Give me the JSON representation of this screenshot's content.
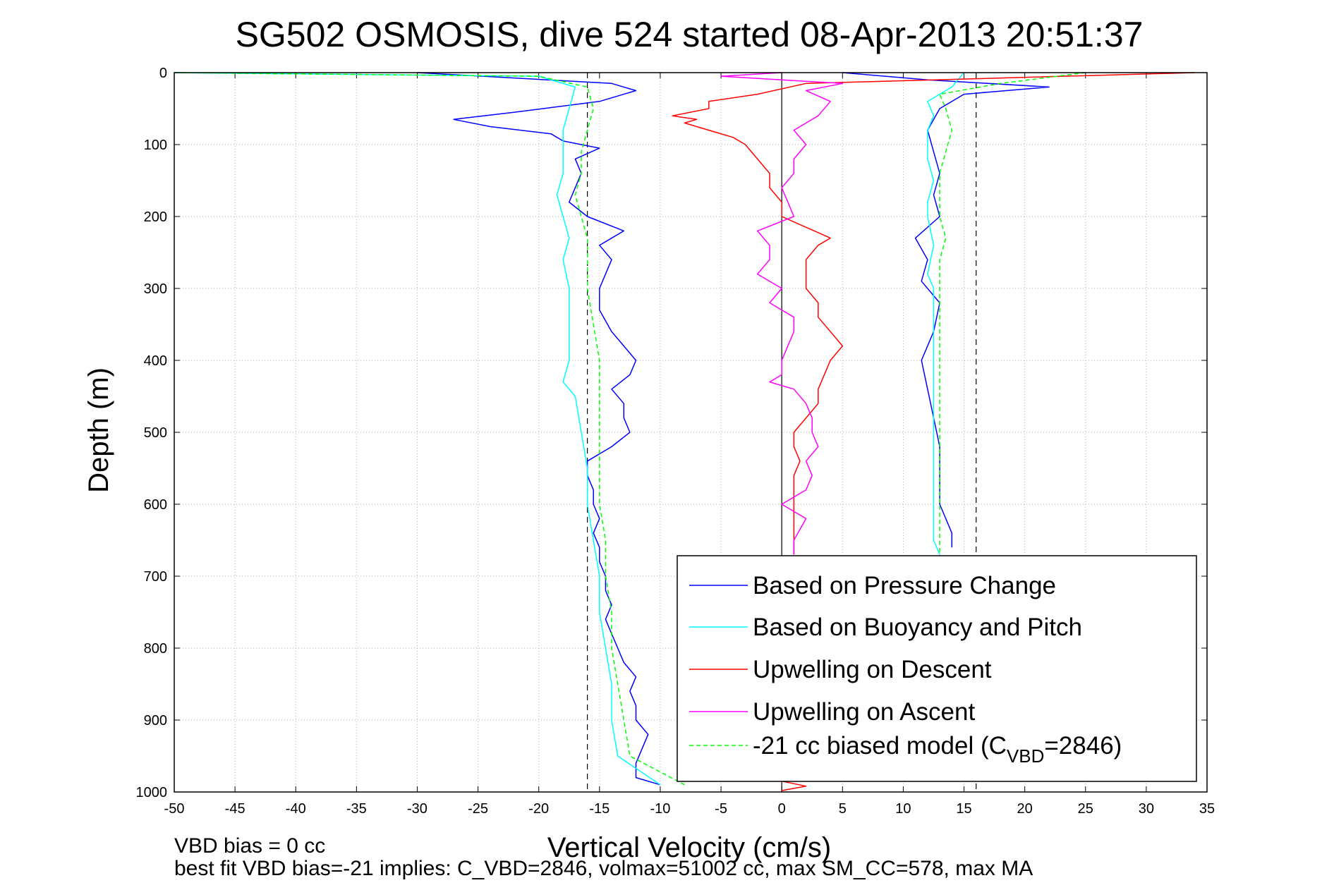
{
  "chart_data": {
    "type": "line",
    "title": "SG502 OSMOSIS, dive 524 started 08-Apr-2013 20:51:37",
    "xlabel": "Vertical Velocity (cm/s)",
    "ylabel": "Depth (m)",
    "xlim": [
      -50,
      35
    ],
    "ylim": [
      0,
      1000
    ],
    "y_reversed": true,
    "grid": true,
    "x_ticks": [
      "-50",
      "-45",
      "-40",
      "-35",
      "-30",
      "-25",
      "-20",
      "-15",
      "-10",
      "-5",
      "0",
      "5",
      "10",
      "15",
      "20",
      "25",
      "30",
      "35"
    ],
    "y_ticks": [
      "0",
      "100",
      "200",
      "300",
      "400",
      "500",
      "600",
      "700",
      "800",
      "900",
      "1000"
    ],
    "reference_lines": {
      "solid_x": 0,
      "dashed_x": [
        -16,
        16
      ],
      "color": "#000000"
    },
    "legend_position": "bottom-right",
    "legend": [
      {
        "label": "Based on Pressure Change",
        "color": "#0000ff",
        "dash": false
      },
      {
        "label": "Based on Buoyancy and Pitch",
        "color": "#00ffff",
        "dash": false
      },
      {
        "label": "Upwelling on Descent",
        "color": "#ff0000",
        "dash": false
      },
      {
        "label": "Upwelling on Ascent",
        "color": "#ff00ff",
        "dash": false
      },
      {
        "label_prefix": "-21 cc biased model (C",
        "label_sub": "VBD",
        "label_suffix": "=2846)",
        "color": "#00ff00",
        "dash": true
      }
    ],
    "series": [
      {
        "name": "Based on Pressure Change",
        "color": "#0000ff",
        "segments": [
          {
            "depth": [
              0,
              15,
              25,
              40,
              55,
              65,
              75,
              85,
              95,
              105,
              120,
              140,
              160,
              180,
              200,
              220,
              240,
              260,
              280,
              300,
              330,
              360,
              380,
              400,
              420,
              440,
              460,
              480,
              500,
              520,
              540,
              560,
              580,
              600,
              620,
              640,
              660,
              680,
              700,
              720,
              740,
              760,
              780,
              800,
              820,
              840,
              860,
              880,
              900,
              920,
              940,
              960,
              980,
              990
            ],
            "value": [
              -30,
              -14,
              -12,
              -15,
              -22,
              -27,
              -24,
              -19,
              -18,
              -15,
              -17,
              -16.5,
              -17,
              -17.5,
              -16,
              -13,
              -15,
              -14,
              -14.5,
              -15,
              -15,
              -14,
              -13,
              -12,
              -12.5,
              -14,
              -13,
              -13,
              -12.5,
              -14,
              -16,
              -16,
              -15.5,
              -15.5,
              -15,
              -15.5,
              -15,
              -15,
              -14.5,
              -14.5,
              -14,
              -14.5,
              -14,
              -13.5,
              -13,
              -12,
              -12.5,
              -12,
              -12,
              -11,
              -11.5,
              -12,
              -12,
              -10
            ]
          },
          {
            "depth": [
              0,
              10,
              20,
              30,
              50,
              80,
              110,
              140,
              170,
              200,
              230,
              260,
              290,
              320,
              360,
              400,
              440,
              480,
              520,
              560,
              600,
              640,
              660
            ],
            "value": [
              5,
              12,
              22,
              15,
              13,
              12,
              12.5,
              13,
              12.5,
              13,
              11,
              12,
              11.5,
              13,
              12.5,
              11.5,
              12,
              12.5,
              13,
              13,
              13,
              14,
              14
            ]
          }
        ]
      },
      {
        "name": "Based on Buoyancy and Pitch",
        "color": "#00ffff",
        "segments": [
          {
            "depth": [
              0,
              5,
              20,
              50,
              80,
              110,
              140,
              170,
              200,
              230,
              260,
              300,
              350,
              400,
              430,
              450,
              500,
              550,
              600,
              650,
              700,
              750,
              800,
              850,
              900,
              950,
              990
            ],
            "value": [
              -50,
              -20,
              -17,
              -17.5,
              -18,
              -18,
              -18,
              -18.5,
              -18,
              -17.5,
              -18,
              -17.5,
              -17.5,
              -17.5,
              -18,
              -17,
              -16.5,
              -16,
              -16,
              -15.5,
              -15,
              -15,
              -14.5,
              -14,
              -14,
              -13.5,
              -10
            ]
          },
          {
            "depth": [
              0,
              20,
              40,
              60,
              80,
              100,
              120,
              150,
              180,
              200,
              240,
              280,
              300,
              350,
              400,
              450,
              500,
              550,
              600,
              650,
              670
            ],
            "value": [
              15,
              14,
              12,
              12.5,
              12,
              12,
              12,
              12.5,
              12,
              12,
              12.5,
              12,
              12.5,
              12.5,
              12.5,
              12.5,
              12.5,
              12.5,
              12.5,
              12.5,
              13
            ]
          }
        ]
      },
      {
        "name": "Upwelling on Descent",
        "color": "#ff0000",
        "segments": [
          {
            "depth": [
              0,
              15,
              30,
              40,
              50,
              60,
              65,
              70,
              80,
              90,
              100,
              120,
              140,
              160,
              180,
              200,
              215,
              230,
              240,
              260,
              280,
              300,
              320,
              340,
              360,
              380,
              400,
              420,
              440,
              460,
              480,
              500,
              520,
              540,
              560,
              580,
              600,
              620,
              640,
              660,
              670
            ],
            "value": [
              34,
              2,
              -2,
              -6,
              -6,
              -9,
              -7,
              -8,
              -6,
              -4,
              -3,
              -2,
              -1,
              -1,
              0,
              0,
              2,
              4,
              3,
              2,
              2,
              2,
              3,
              3,
              4,
              5,
              4,
              3.5,
              3,
              3,
              2,
              1,
              1,
              1.5,
              1,
              1,
              1,
              1,
              1,
              1,
              1
            ]
          },
          {
            "depth": [
              985,
              992,
              998
            ],
            "value": [
              0,
              2,
              0
            ]
          }
        ]
      },
      {
        "name": "Upwelling on Ascent",
        "color": "#ff00ff",
        "segments": [
          {
            "depth": [
              670,
              650,
              620,
              600,
              580,
              560,
              540,
              520,
              500,
              480,
              460,
              440,
              430,
              420,
              400,
              380,
              360,
              340,
              320,
              300,
              280,
              260,
              240,
              220,
              200,
              180,
              160,
              140,
              120,
              100,
              80,
              60,
              40,
              25,
              15,
              5,
              0
            ],
            "value": [
              1,
              1,
              2,
              0,
              2,
              2.5,
              2,
              3,
              2.5,
              2.5,
              2,
              1,
              -1,
              0,
              0,
              0.5,
              1,
              1,
              -1,
              0,
              -2,
              -1,
              -1,
              -2,
              1,
              0.5,
              0,
              1,
              1,
              2,
              1,
              3,
              4,
              2,
              5,
              -5,
              0
            ]
          }
        ]
      },
      {
        "name": "-21 cc biased model (CVBD=2846)",
        "color": "#00ff00",
        "dashed": true,
        "segments": [
          {
            "depth": [
              0,
              5,
              20,
              50,
              80,
              110,
              140,
              170,
              200,
              230,
              260,
              300,
              350,
              400,
              450,
              500,
              550,
              600,
              650,
              700,
              750,
              800,
              850,
              900,
              950,
              990
            ],
            "value": [
              -50,
              -20,
              -16,
              -15.5,
              -16,
              -16.5,
              -16.5,
              -17,
              -16.5,
              -16,
              -16,
              -16,
              -15.5,
              -15,
              -15,
              -15,
              -15,
              -15,
              -14.5,
              -14.5,
              -14,
              -14,
              -13.5,
              -13,
              -12.5,
              -8
            ]
          },
          {
            "depth": [
              0,
              15,
              30,
              50,
              80,
              110,
              140,
              170,
              200,
              230,
              260,
              300,
              350,
              400,
              450,
              500,
              550,
              600,
              650,
              700
            ],
            "value": [
              25,
              18,
              13,
              13.5,
              14,
              13.5,
              13,
              13,
              13,
              13.5,
              13,
              13,
              13,
              13,
              13,
              13,
              13,
              13,
              13,
              13
            ]
          }
        ]
      }
    ],
    "notes": [
      "VBD bias = 0 cc",
      "best fit VBD bias=-21 implies: C_VBD=2846, volmax=51002 cc, max SM_CC=578, max MA"
    ]
  }
}
